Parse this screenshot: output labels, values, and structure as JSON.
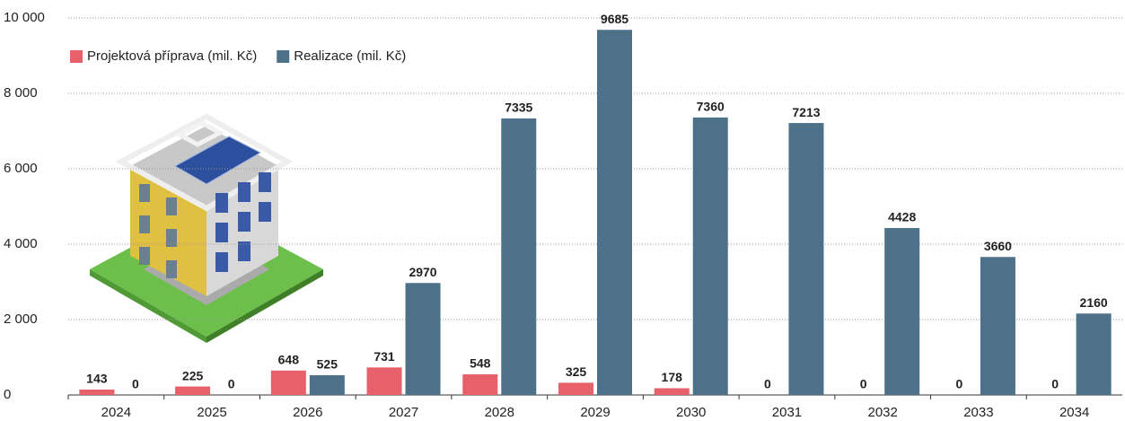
{
  "chart_data": {
    "type": "bar",
    "categories": [
      "2024",
      "2025",
      "2026",
      "2027",
      "2028",
      "2029",
      "2030",
      "2031",
      "2032",
      "2033",
      "2034"
    ],
    "series": [
      {
        "name": "Projektová příprava (mil. Kč)",
        "color": "#e8606a",
        "values": [
          143,
          225,
          648,
          731,
          548,
          325,
          178,
          0,
          0,
          0,
          0
        ]
      },
      {
        "name": "Realizace (mil. Kč)",
        "color": "#4d7189",
        "values": [
          0,
          0,
          525,
          2970,
          7335,
          9685,
          7360,
          7213,
          4428,
          3660,
          2160
        ]
      }
    ],
    "ylim": [
      0,
      10000
    ],
    "yticks": [
      0,
      {
        "value": 2000,
        "label": "2 000"
      },
      {
        "value": 4000,
        "label": "4 000"
      },
      {
        "value": 6000,
        "label": "6 000"
      },
      {
        "value": 8000,
        "label": "8 000"
      },
      {
        "value": 10000,
        "label": "10 000"
      }
    ],
    "grid": true,
    "legend": "top-left"
  }
}
